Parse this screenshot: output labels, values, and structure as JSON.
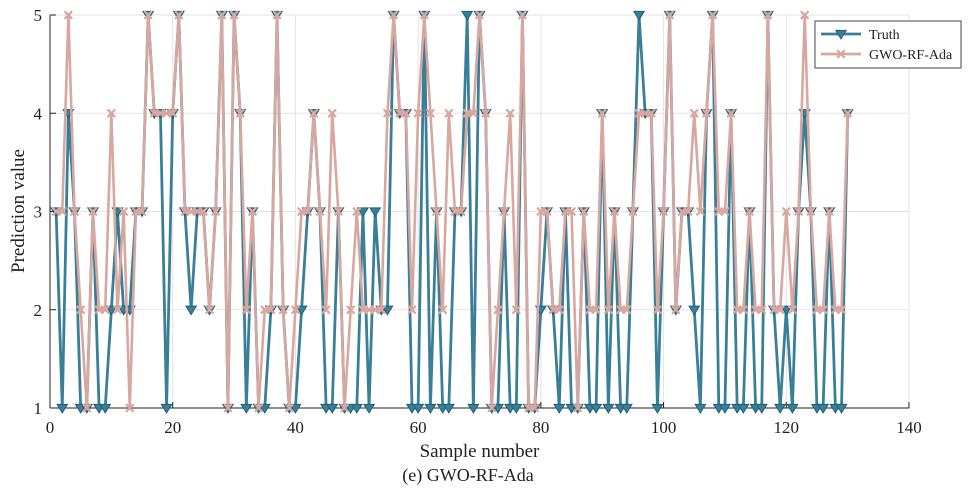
{
  "caption": "(e) GWO-RF-Ada",
  "chart_data": {
    "type": "line",
    "title": "",
    "xlabel": "Sample number",
    "ylabel": "Prediction value",
    "xlim": [
      0,
      140
    ],
    "ylim": [
      1,
      5
    ],
    "xticks": [
      0,
      20,
      40,
      60,
      80,
      100,
      120,
      140
    ],
    "yticks": [
      1,
      2,
      3,
      4,
      5
    ],
    "grid": true,
    "legend_position": "top-right",
    "x": [
      1,
      2,
      3,
      4,
      5,
      6,
      7,
      8,
      9,
      10,
      11,
      12,
      13,
      14,
      15,
      16,
      17,
      18,
      19,
      20,
      21,
      22,
      23,
      24,
      25,
      26,
      27,
      28,
      29,
      30,
      31,
      32,
      33,
      34,
      35,
      36,
      37,
      38,
      39,
      40,
      41,
      42,
      43,
      44,
      45,
      46,
      47,
      48,
      49,
      50,
      51,
      52,
      53,
      54,
      55,
      56,
      57,
      58,
      59,
      60,
      61,
      62,
      63,
      64,
      65,
      66,
      67,
      68,
      69,
      70,
      71,
      72,
      73,
      74,
      75,
      76,
      77,
      78,
      79,
      80,
      81,
      82,
      83,
      84,
      85,
      86,
      87,
      88,
      89,
      90,
      91,
      92,
      93,
      94,
      95,
      96,
      97,
      98,
      99,
      100,
      101,
      102,
      103,
      104,
      105,
      106,
      107,
      108,
      109,
      110,
      111,
      112,
      113,
      114,
      115,
      116,
      117,
      118,
      119,
      120,
      121,
      122,
      123,
      124,
      125,
      126,
      127,
      128,
      129,
      130
    ],
    "series": [
      {
        "name": "Truth",
        "color": "#3a7f98",
        "marker": "triangle-down",
        "values": [
          3,
          1,
          4,
          3,
          1,
          1,
          3,
          1,
          1,
          2,
          3,
          2,
          2,
          3,
          3,
          5,
          4,
          4,
          1,
          4,
          5,
          3,
          2,
          3,
          3,
          2,
          3,
          5,
          1,
          5,
          4,
          1,
          3,
          1,
          1,
          2,
          5,
          2,
          1,
          1,
          2,
          3,
          4,
          3,
          1,
          1,
          3,
          1,
          1,
          1,
          3,
          1,
          3,
          2,
          2,
          5,
          4,
          4,
          1,
          1,
          5,
          1,
          3,
          1,
          1,
          3,
          3,
          5,
          1,
          5,
          4,
          1,
          1,
          3,
          1,
          1,
          5,
          1,
          1,
          2,
          3,
          2,
          1,
          3,
          1,
          1,
          3,
          1,
          1,
          4,
          1,
          3,
          1,
          1,
          3,
          5,
          4,
          4,
          1,
          3,
          5,
          2,
          3,
          3,
          2,
          1,
          4,
          5,
          1,
          1,
          4,
          1,
          1,
          3,
          1,
          1,
          5,
          2,
          1,
          2,
          1,
          3,
          4,
          3,
          1,
          1,
          3,
          1,
          1,
          4
        ]
      },
      {
        "name": "GWO-RF-Ada",
        "color": "#d8a8a0",
        "marker": "x",
        "values": [
          3,
          3,
          5,
          3,
          2,
          1,
          3,
          2,
          2,
          4,
          2,
          3,
          1,
          3,
          3,
          5,
          4,
          4,
          4,
          4,
          5,
          3,
          3,
          3,
          3,
          2,
          3,
          5,
          1,
          5,
          4,
          2,
          3,
          1,
          2,
          2,
          5,
          2,
          1,
          2,
          3,
          3,
          4,
          3,
          2,
          4,
          3,
          1,
          2,
          3,
          2,
          2,
          2,
          2,
          4,
          5,
          4,
          4,
          2,
          4,
          5,
          4,
          3,
          2,
          4,
          3,
          3,
          4,
          4,
          5,
          4,
          1,
          2,
          3,
          4,
          2,
          5,
          1,
          1,
          3,
          3,
          2,
          2,
          3,
          3,
          1,
          3,
          2,
          2,
          4,
          2,
          3,
          2,
          2,
          3,
          4,
          4,
          4,
          2,
          3,
          5,
          2,
          3,
          3,
          4,
          3,
          4,
          5,
          3,
          3,
          4,
          2,
          2,
          3,
          2,
          2,
          5,
          2,
          2,
          3,
          2,
          3,
          5,
          3,
          2,
          2,
          3,
          2,
          2,
          4
        ]
      }
    ]
  }
}
